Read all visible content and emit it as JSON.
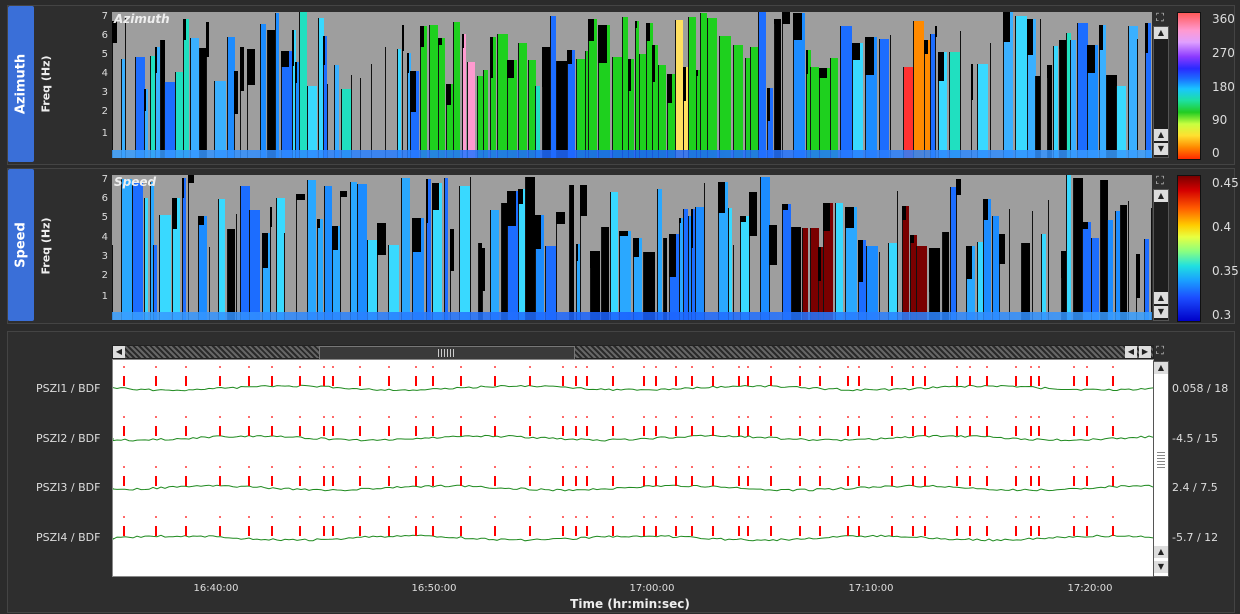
{
  "panels": {
    "azimuth": {
      "tab_label": "Azimuth",
      "axis_label": "Freq (Hz)",
      "overlay_title": "Azimuth",
      "y_ticks": [
        "7",
        "6",
        "5",
        "4",
        "3",
        "2",
        "1"
      ],
      "colorbar_labels": [
        "360",
        "270",
        "180",
        "90",
        "0"
      ]
    },
    "speed": {
      "tab_label": "Speed",
      "axis_label": "Freq (Hz)",
      "overlay_title": "Speed",
      "y_ticks": [
        "7",
        "6",
        "5",
        "4",
        "3",
        "2",
        "1"
      ],
      "colorbar_labels": [
        "0.45",
        "0.4",
        "0.35",
        "0.3"
      ]
    }
  },
  "traces": [
    {
      "label": "PSZI1 / BDF",
      "scale": "0.058 / 18"
    },
    {
      "label": "PSZI2 / BDF",
      "scale": "-4.5 / 15"
    },
    {
      "label": "PSZI3 / BDF",
      "scale": "2.4 / 7.5"
    },
    {
      "label": "PSZI4 / BDF",
      "scale": "-5.7 / 12"
    }
  ],
  "x_axis": {
    "ticks": [
      "16:40:00",
      "16:50:00",
      "17:00:00",
      "17:10:00",
      "17:20:00"
    ],
    "title": "Time (hr:min:sec)"
  },
  "colors": {
    "panel_tab": "#3a6fd8",
    "trace_line": "#1f8a1f",
    "detection": "#ff0000",
    "spectro_bg": "#9e9e9e"
  },
  "icons": {
    "expand": "expand-icon",
    "scroll_up": "arrow-up-icon",
    "scroll_down": "arrow-down-icon",
    "scroll_left": "arrow-left-icon",
    "scroll_right": "arrow-right-icon",
    "grip": "grip-icon"
  }
}
